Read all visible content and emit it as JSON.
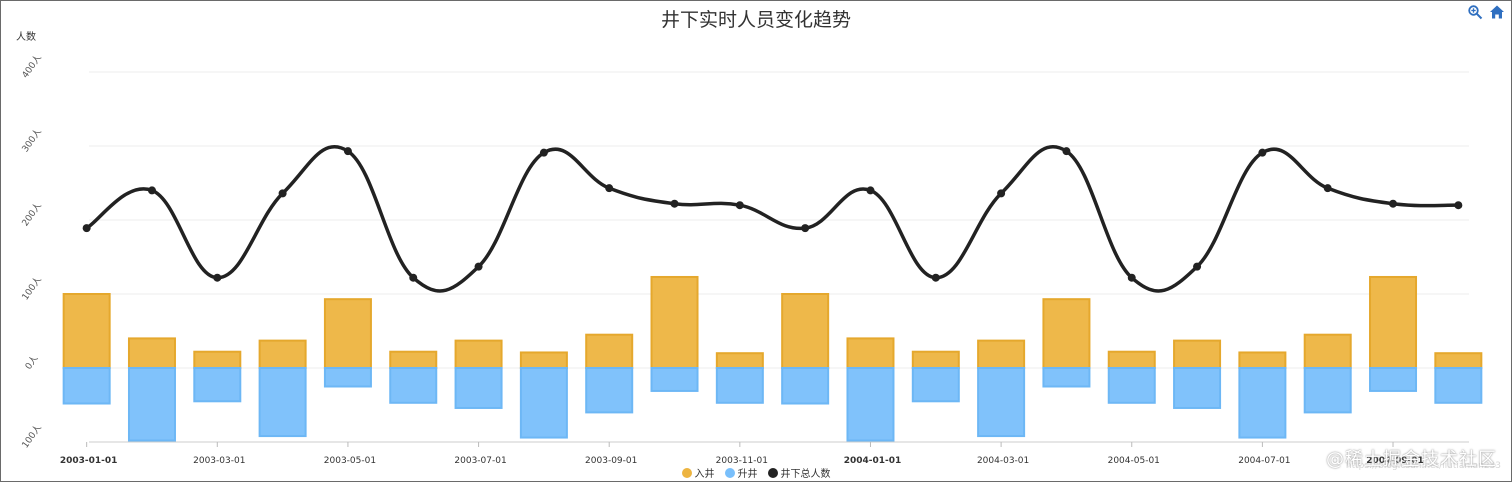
{
  "title": "井下实时人员变化趋势",
  "y_axis_name": "人数",
  "toolbox": [
    {
      "name": "zoom-icon"
    },
    {
      "name": "home-icon"
    }
  ],
  "legend": [
    {
      "label": "入井",
      "color": "#EDB440"
    },
    {
      "label": "升井",
      "color": "#79BFFB"
    },
    {
      "label": "井下总人数",
      "color": "#222222"
    }
  ],
  "watermark": "@稀土掘金技术社区",
  "watermark_url": "https://blog.csdn.net/liutianlan233",
  "chart_data": {
    "type": "bar+line",
    "title": "井下实时人员变化趋势",
    "ylabel": "人数",
    "ylim": [
      -100,
      400
    ],
    "y_ticks": [
      {
        "value": -100,
        "label": "100人"
      },
      {
        "value": 0,
        "label": "0人"
      },
      {
        "value": 100,
        "label": "100人"
      },
      {
        "value": 200,
        "label": "200人"
      },
      {
        "value": 300,
        "label": "300人"
      },
      {
        "value": 400,
        "label": "400人"
      }
    ],
    "x_ticks": [
      {
        "label": "2003-01-01",
        "bold": true
      },
      {
        "label": "2003-03-01",
        "bold": false
      },
      {
        "label": "2003-05-01",
        "bold": false
      },
      {
        "label": "2003-07-01",
        "bold": false
      },
      {
        "label": "2003-09-01",
        "bold": false
      },
      {
        "label": "2003-11-01",
        "bold": false
      },
      {
        "label": "2004-01-01",
        "bold": true
      },
      {
        "label": "2004-03-01",
        "bold": false
      },
      {
        "label": "2004-05-01",
        "bold": false
      },
      {
        "label": "2004-07-01",
        "bold": false
      },
      {
        "label": "2004-09-01",
        "bold": true
      }
    ],
    "grid": true,
    "legend_position": "bottom-center",
    "series": [
      {
        "name": "入井",
        "type": "bar",
        "color": "#EDB440",
        "values": [
          100,
          40,
          22,
          37,
          93,
          22,
          37,
          21,
          45,
          123,
          20,
          100,
          40,
          22,
          37,
          93,
          22,
          37,
          21,
          45,
          123,
          20
        ]
      },
      {
        "name": "升井",
        "type": "bar",
        "color": "#79BFFB",
        "values": [
          -48,
          -98,
          -45,
          -92,
          -25,
          -47,
          -54,
          -94,
          -60,
          -31,
          -47,
          -48,
          -98,
          -45,
          -92,
          -25,
          -47,
          -54,
          -94,
          -60,
          -31,
          -47
        ]
      },
      {
        "name": "井下总人数",
        "type": "line",
        "smooth": true,
        "color": "#222222",
        "values": [
          189,
          240,
          122,
          236,
          293,
          122,
          137,
          291,
          243,
          222,
          220,
          189,
          240,
          122,
          236,
          293,
          122,
          137,
          291,
          243,
          222,
          220
        ]
      }
    ]
  }
}
